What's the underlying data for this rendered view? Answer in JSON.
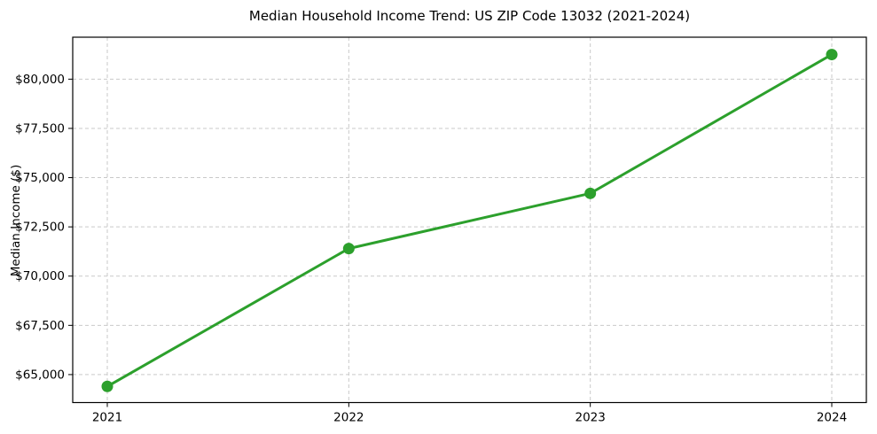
{
  "figure": {
    "background": "#ffffff"
  },
  "chart_data": {
    "type": "line",
    "title": "Median Household Income Trend: US ZIP Code 13032 (2021-2024)",
    "xlabel": "",
    "ylabel": "Median Income ($)",
    "categories": [
      "2021",
      "2022",
      "2023",
      "2024"
    ],
    "series": [
      {
        "name": "Median Household Income",
        "values": [
          64400,
          71400,
          74200,
          81250
        ]
      }
    ],
    "y_ticks": [
      65000,
      67500,
      70000,
      72500,
      75000,
      77500,
      80000
    ],
    "y_tick_labels": [
      "$65,000",
      "$67,500",
      "$70,000",
      "$72,500",
      "$75,000",
      "$77,500",
      "$80,000"
    ],
    "ylim": [
      63580,
      82130
    ],
    "grid": true,
    "grid_style": "dashed",
    "legend": "none",
    "colors": {
      "line": "#2ca02c",
      "marker": "#2ca02c",
      "grid": "#c9c9c9",
      "spine": "#000000",
      "tick": "#000000",
      "text": "#000000",
      "background": "#ffffff"
    }
  }
}
